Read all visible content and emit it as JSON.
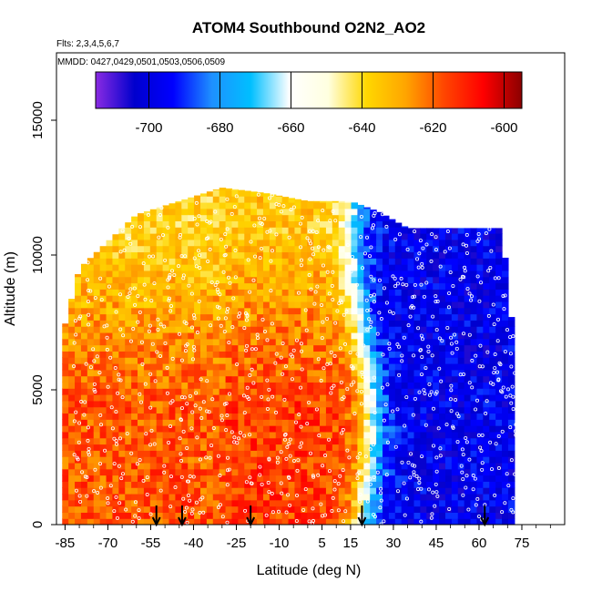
{
  "chart_data": {
    "type": "heatmap",
    "title": "ATOM4 Southbound O2N2_AO2",
    "subtitle_lines": [
      "Flts: 2,3,4,5,6,7",
      "MMDD: 0427,0429,0501,0503,0506,0509"
    ],
    "xlabel": "Latitude (deg N)",
    "ylabel": "Altitude (m)",
    "xlim": [
      -88,
      90
    ],
    "ylim": [
      0,
      17500
    ],
    "x_ticks": [
      -85,
      -70,
      -55,
      -40,
      -25,
      -10,
      5,
      15,
      30,
      45,
      60,
      75
    ],
    "x_tick_labels": [
      "-85",
      "-70",
      "-55",
      "-40",
      "-25",
      "-10",
      "5",
      "15",
      "30",
      "45",
      "60",
      "75"
    ],
    "y_ticks": [
      0,
      5000,
      10000,
      15000
    ],
    "y_tick_labels": [
      "0",
      "5000",
      "10000",
      "15000"
    ],
    "colorbar": {
      "min": -715,
      "max": -595,
      "ticks": [
        -700,
        -680,
        -660,
        -640,
        -620,
        -600
      ],
      "tick_labels": [
        "-700",
        "-680",
        "-660",
        "-640",
        "-620",
        "-600"
      ],
      "colors": [
        "#8a2be2",
        "#0000cd",
        "#0000ff",
        "#1e90ff",
        "#00bfff",
        "#ffffff",
        "#ffffe0",
        "#ffd700",
        "#ffa500",
        "#ff4500",
        "#ff0000",
        "#8b0000"
      ]
    },
    "field": {
      "approx_data_extent_lat": [
        -86,
        73
      ],
      "max_altitude_by_lat": [
        [
          -86,
          7000
        ],
        [
          -80,
          9500
        ],
        [
          -72,
          10300
        ],
        [
          -60,
          11500
        ],
        [
          -45,
          12000
        ],
        [
          -30,
          12500
        ],
        [
          -15,
          12300
        ],
        [
          0,
          12000
        ],
        [
          15,
          12000
        ],
        [
          25,
          11600
        ],
        [
          35,
          11000
        ],
        [
          50,
          11000
        ],
        [
          60,
          11000
        ],
        [
          68,
          11000
        ],
        [
          73,
          6000
        ]
      ],
      "transition_lat": 18,
      "southern_value": -615,
      "upper_troposphere_value": -635,
      "northern_value": -698
    },
    "markers_lat": [
      -53,
      -44,
      -20,
      19,
      62
    ]
  }
}
